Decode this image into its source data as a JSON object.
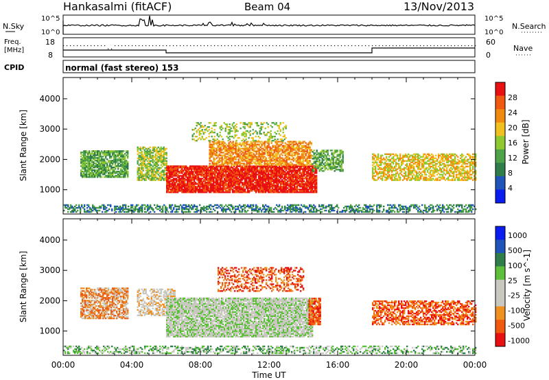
{
  "header": {
    "station": "Hankasalmi (fitACF)",
    "beam": "Beam 04",
    "date": "13/Nov/2013"
  },
  "noise_panel": {
    "left_label": "N.Sky",
    "right_label": "N.Search",
    "left_ticks": [
      "10^5",
      "10^0"
    ],
    "right_ticks": [
      "10^5",
      "10^0"
    ]
  },
  "freq_panel": {
    "left_label_1": "Freq.",
    "left_label_2": "[MHz]",
    "left_ticks": [
      "18",
      "8"
    ],
    "right_label": "Nave",
    "right_ticks": [
      "60",
      "0"
    ]
  },
  "cpid_panel": {
    "label": "CPID",
    "mode": "normal (fast stereo) 153"
  },
  "colors": {
    "power": [
      "#0a1cf0",
      "#1f54b8",
      "#2e7d4a",
      "#4ea34a",
      "#90c830",
      "#f0c020",
      "#f08a10",
      "#f05a10",
      "#e81010"
    ],
    "velocity": [
      "#e81010",
      "#f05a10",
      "#f09020",
      "#c8c8c0",
      "#c8c8c0",
      "#5ec03a",
      "#2e7d4a",
      "#1f54b8",
      "#0a1cf0"
    ]
  },
  "chart_data": [
    {
      "type": "heatmap",
      "name": "power",
      "ylabel": "Slant Range [km]",
      "yticks": [
        1000,
        2000,
        3000,
        4000
      ],
      "ylim": [
        200,
        4700
      ],
      "xlim": [
        0,
        24
      ],
      "colorbar": {
        "label": "Power [dB]",
        "ticks": [
          "4",
          "8",
          "12",
          "16",
          "20",
          "24",
          "28"
        ]
      },
      "regions": [
        {
          "t0": 0.0,
          "t1": 24.0,
          "r0": 250,
          "r1": 500,
          "level": 2,
          "density": 0.5
        },
        {
          "t0": 1.0,
          "t1": 3.8,
          "r0": 1400,
          "r1": 2300,
          "level": 3,
          "density": 0.8
        },
        {
          "t0": 4.3,
          "t1": 6.0,
          "r0": 1300,
          "r1": 2400,
          "level": 4,
          "density": 0.7
        },
        {
          "t0": 6.0,
          "t1": 14.8,
          "r0": 900,
          "r1": 1800,
          "level": 8,
          "density": 0.9
        },
        {
          "t0": 8.5,
          "t1": 14.5,
          "r0": 1800,
          "r1": 2600,
          "level": 6,
          "density": 0.7
        },
        {
          "t0": 7.5,
          "t1": 13.0,
          "r0": 2600,
          "r1": 3200,
          "level": 4,
          "density": 0.3
        },
        {
          "t0": 14.5,
          "t1": 16.3,
          "r0": 1600,
          "r1": 2300,
          "level": 3,
          "density": 0.6
        },
        {
          "t0": 18.0,
          "t1": 24.0,
          "r0": 1300,
          "r1": 2200,
          "level": 5,
          "density": 0.6
        }
      ]
    },
    {
      "type": "heatmap",
      "name": "velocity",
      "ylabel": "Slant Range [km]",
      "yticks": [
        1000,
        2000,
        3000,
        4000
      ],
      "ylim": [
        200,
        4700
      ],
      "xlim": [
        0,
        24
      ],
      "xticks": [
        "00:00",
        "04:00",
        "08:00",
        "12:00",
        "16:00",
        "20:00",
        "00:00"
      ],
      "xlabel": "Time UT",
      "colorbar": {
        "label": "Velocity [m s^-1]",
        "ticks": [
          "1000",
          "500",
          "100",
          "25",
          "-25",
          "-100",
          "-500",
          "-1000"
        ]
      },
      "regions": [
        {
          "t0": 0.0,
          "t1": 24.0,
          "r0": 250,
          "r1": 500,
          "level": 5,
          "density": 0.4
        },
        {
          "t0": 1.0,
          "t1": 3.8,
          "r0": 1400,
          "r1": 2400,
          "level": 2,
          "density": 0.7
        },
        {
          "t0": 4.3,
          "t1": 6.5,
          "r0": 1500,
          "r1": 2400,
          "level": 3,
          "density": 0.5
        },
        {
          "t0": 6.0,
          "t1": 14.5,
          "r0": 800,
          "r1": 2100,
          "level": 4,
          "density": 0.85
        },
        {
          "t0": 9.0,
          "t1": 14.0,
          "r0": 2300,
          "r1": 3100,
          "level": 1,
          "density": 0.35
        },
        {
          "t0": 14.3,
          "t1": 15.0,
          "r0": 1200,
          "r1": 2100,
          "level": 1,
          "density": 0.8
        },
        {
          "t0": 18.0,
          "t1": 24.0,
          "r0": 1200,
          "r1": 2000,
          "level": 1,
          "density": 0.6
        }
      ]
    }
  ]
}
